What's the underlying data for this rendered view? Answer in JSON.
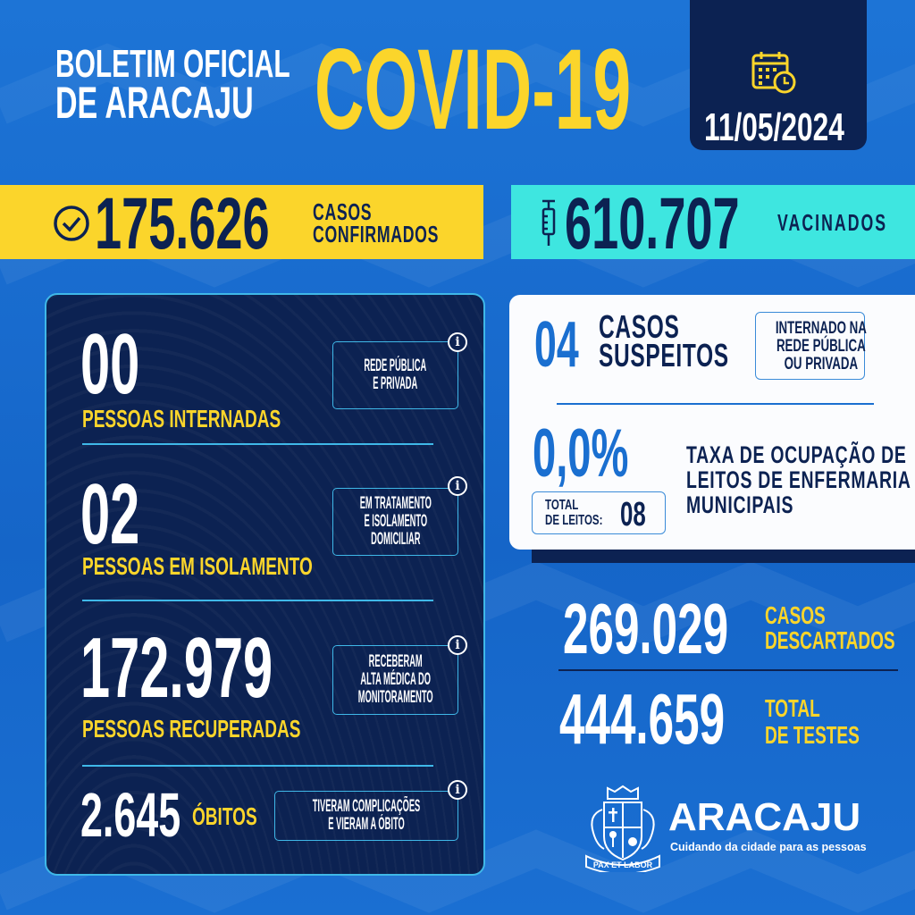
{
  "header": {
    "title_line1": "BOLETIM OFICIAL",
    "title_line2": "DE ARACAJU",
    "headline": "COVID-19",
    "date": "11/05/2024",
    "date_icon": "calendar-clock-icon"
  },
  "confirmed": {
    "value": "175.626",
    "label_line1": "CASOS",
    "label_line2": "CONFIRMADOS",
    "icon": "check-circle-icon"
  },
  "vaccinated": {
    "value": "610.707",
    "label": "VACINADOS",
    "icon": "syringe-icon"
  },
  "panel": {
    "rows": [
      {
        "value": "00",
        "label": "PESSOAS INTERNADAS",
        "info": [
          "REDE PÚBLICA",
          "E PRIVADA"
        ]
      },
      {
        "value": "02",
        "label": "PESSOAS EM ISOLAMENTO",
        "info": [
          "EM TRATAMENTO",
          "E ISOLAMENTO",
          "DOMICILIAR"
        ]
      },
      {
        "value": "172.979",
        "label": "PESSOAS RECUPERADAS",
        "info": [
          "RECEBERAM",
          "ALTA MÉDICA DO",
          "MONITORAMENTO"
        ]
      },
      {
        "value": "2.645",
        "label": "ÓBITOS",
        "info": [
          "TIVERAM COMPLICAÇÕES",
          "E VIERAM A ÓBITO"
        ]
      }
    ],
    "info_glyph": "i"
  },
  "suspects": {
    "value": "04",
    "label_line1": "CASOS",
    "label_line2": "SUSPEITOS",
    "note": [
      "INTERNADO NA",
      "REDE PÚBLICA",
      "OU PRIVADA"
    ]
  },
  "occupancy": {
    "value": "0,0%",
    "total_label_line1": "TOTAL",
    "total_label_line2": "DE LEITOS:",
    "total_value": "08",
    "desc": [
      "TAXA DE OCUPAÇÃO DE",
      "LEITOS DE ENFERMARIA",
      "MUNICIPAIS"
    ]
  },
  "discarded": {
    "value": "269.029",
    "label_line1": "CASOS",
    "label_line2": "DESCARTADOS"
  },
  "tests": {
    "value": "444.659",
    "label_line1": "TOTAL",
    "label_line2": "DE TESTES"
  },
  "brand": {
    "name": "ARACAJU",
    "tagline": "Cuidando da cidade para as pessoas",
    "crest_text": "PAX ET LABOR"
  },
  "colors": {
    "background": "#1a6fd2",
    "navy": "#0c2252",
    "yellow": "#fbd52b",
    "cyan": "#3ee6e0"
  }
}
